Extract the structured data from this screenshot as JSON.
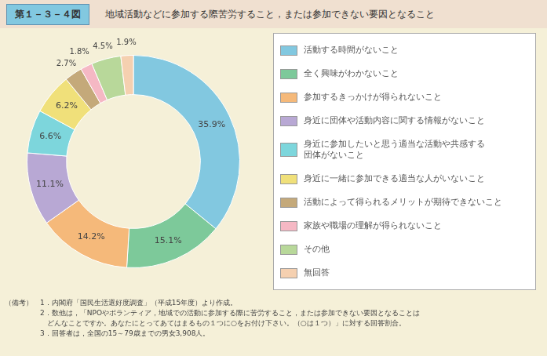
{
  "chart_data": {
    "type": "doughnut",
    "title": "第１－３－４図",
    "subtitle": "　地域活動などに参加する際苦労すること，または参加できない要因となること",
    "categories": [
      "活動する時間がないこと",
      "全く興味がわかないこと",
      "参加するきっかけが得られないこと",
      "身近に団体や活動内容に関する情報がないこと",
      "身近に参加したいと思う適当な活動や共感する\n団体がないこと",
      "身近に一緒に参加できる適当な人がいないこと",
      "活動によって得られるメリットが期待できないこと",
      "家族や職場の理解が得られないこと",
      "その他",
      "無回答"
    ],
    "values": [
      35.9,
      15.1,
      14.2,
      11.1,
      6.6,
      6.2,
      2.7,
      1.8,
      4.5,
      1.9
    ],
    "value_labels": [
      "35.9%",
      "15.1%",
      "14.2%",
      "11.1%",
      "6.6%",
      "6.2%",
      "2.7%",
      "1.8%",
      "4.5%",
      "1.9%"
    ],
    "colors": [
      "#82c8e0",
      "#7dc99a",
      "#f5b97a",
      "#b8a8d4",
      "#7dd6dc",
      "#f0e07a",
      "#c4a97a",
      "#f5b8c4",
      "#b8d89a",
      "#f5d0b0"
    ],
    "data_labels": true,
    "legend": "right",
    "annotations": [
      "（備考）　1．内閣府「国民生活選好度調査」（平成15年度）より作成。",
      "　　　　　2．数他は，「NPOやボランティア，地域での活動に参加する際に苦労すること，または参加できない要因となることは",
      "　　　　　　どんなことですか。あなたにとってあてはまるもの１つに○をお付け下さい。（○は１つ）」に対する回答割合。",
      "　　　　　3．回答者は，全国の15～79歳までの男女3,908人。"
    ]
  }
}
